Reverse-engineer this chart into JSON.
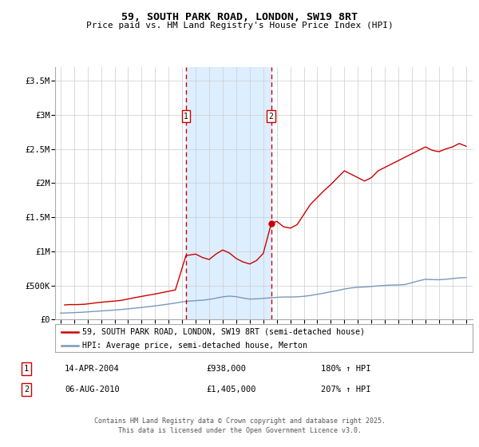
{
  "title": "59, SOUTH PARK ROAD, LONDON, SW19 8RT",
  "subtitle": "Price paid vs. HM Land Registry's House Price Index (HPI)",
  "legend_label_red": "59, SOUTH PARK ROAD, LONDON, SW19 8RT (semi-detached house)",
  "legend_label_blue": "HPI: Average price, semi-detached house, Merton",
  "footer": "Contains HM Land Registry data © Crown copyright and database right 2025.\nThis data is licensed under the Open Government Licence v3.0.",
  "red_color": "#cc0000",
  "blue_color": "#7799bb",
  "shade_color": "#ddeeff",
  "vline_color": "#cc0000",
  "marker1_date_label": "14-APR-2004",
  "marker1_price": "£938,000",
  "marker1_hpi": "180% ↑ HPI",
  "marker2_date_label": "06-AUG-2010",
  "marker2_price": "£1,405,000",
  "marker2_hpi": "207% ↑ HPI",
  "ylim_max": 3700000,
  "xlim_start": 1994.6,
  "xlim_end": 2025.5,
  "red_x": [
    1995.3,
    1995.7,
    1996.2,
    1996.8,
    1997.2,
    1997.7,
    1998.2,
    1998.6,
    1999.0,
    1999.5,
    2000.0,
    2000.5,
    2001.0,
    2001.5,
    2002.0,
    2002.5,
    2003.0,
    2003.5,
    2004.28,
    2005.0,
    2005.5,
    2006.0,
    2006.5,
    2007.0,
    2007.5,
    2008.0,
    2008.5,
    2009.0,
    2009.5,
    2010.0,
    2010.59,
    2011.0,
    2011.5,
    2012.0,
    2012.5,
    2013.0,
    2013.5,
    2014.0,
    2014.5,
    2015.0,
    2015.5,
    2016.0,
    2016.5,
    2017.0,
    2017.5,
    2018.0,
    2018.5,
    2019.0,
    2019.5,
    2020.0,
    2020.5,
    2021.0,
    2021.5,
    2022.0,
    2022.5,
    2023.0,
    2023.5,
    2024.0,
    2024.5,
    2025.0
  ],
  "red_y": [
    215000,
    220000,
    220000,
    225000,
    235000,
    248000,
    258000,
    265000,
    272000,
    282000,
    302000,
    322000,
    340000,
    358000,
    375000,
    395000,
    415000,
    435000,
    938000,
    960000,
    910000,
    880000,
    960000,
    1020000,
    975000,
    895000,
    845000,
    815000,
    865000,
    970000,
    1405000,
    1440000,
    1360000,
    1340000,
    1390000,
    1540000,
    1690000,
    1790000,
    1890000,
    1980000,
    2080000,
    2180000,
    2130000,
    2080000,
    2030000,
    2080000,
    2180000,
    2230000,
    2280000,
    2330000,
    2380000,
    2430000,
    2480000,
    2530000,
    2480000,
    2460000,
    2500000,
    2530000,
    2580000,
    2540000
  ],
  "blue_x": [
    1995.0,
    1995.5,
    1996.0,
    1996.5,
    1997.0,
    1997.5,
    1998.0,
    1998.5,
    1999.0,
    1999.5,
    2000.0,
    2000.5,
    2001.0,
    2001.5,
    2002.0,
    2002.5,
    2003.0,
    2003.5,
    2004.0,
    2004.5,
    2005.0,
    2005.5,
    2006.0,
    2006.5,
    2007.0,
    2007.5,
    2008.0,
    2008.5,
    2009.0,
    2009.5,
    2010.0,
    2010.5,
    2011.0,
    2011.5,
    2012.0,
    2012.5,
    2013.0,
    2013.5,
    2014.0,
    2014.5,
    2015.0,
    2015.5,
    2016.0,
    2016.5,
    2017.0,
    2017.5,
    2018.0,
    2018.5,
    2019.0,
    2019.5,
    2020.0,
    2020.5,
    2021.0,
    2021.5,
    2022.0,
    2022.5,
    2023.0,
    2023.5,
    2024.0,
    2024.5,
    2025.0
  ],
  "blue_y": [
    95000,
    98000,
    102000,
    107000,
    113000,
    120000,
    127000,
    133000,
    140000,
    148000,
    158000,
    168000,
    178000,
    189000,
    201000,
    214000,
    228000,
    243000,
    259000,
    271000,
    278000,
    284000,
    296000,
    314000,
    334000,
    344000,
    336000,
    316000,
    301000,
    304000,
    311000,
    318000,
    326000,
    331000,
    331000,
    334000,
    341000,
    354000,
    371000,
    388000,
    408000,
    426000,
    448000,
    464000,
    474000,
    478000,
    486000,
    494000,
    501000,
    506000,
    508000,
    514000,
    541000,
    568000,
    591000,
    586000,
    584000,
    591000,
    601000,
    611000,
    616000
  ],
  "vline1_x": 2004.28,
  "vline2_x": 2010.59,
  "yticks": [
    0,
    500000,
    1000000,
    1500000,
    2000000,
    2500000,
    3000000,
    3500000
  ],
  "ytick_labels": [
    "£0",
    "£500K",
    "£1M",
    "£1.5M",
    "£2M",
    "£2.5M",
    "£3M",
    "£3.5M"
  ],
  "xticks": [
    1995,
    1996,
    1997,
    1998,
    1999,
    2000,
    2001,
    2002,
    2003,
    2004,
    2005,
    2006,
    2007,
    2008,
    2009,
    2010,
    2011,
    2012,
    2013,
    2014,
    2015,
    2016,
    2017,
    2018,
    2019,
    2020,
    2021,
    2022,
    2023,
    2024,
    2025
  ]
}
